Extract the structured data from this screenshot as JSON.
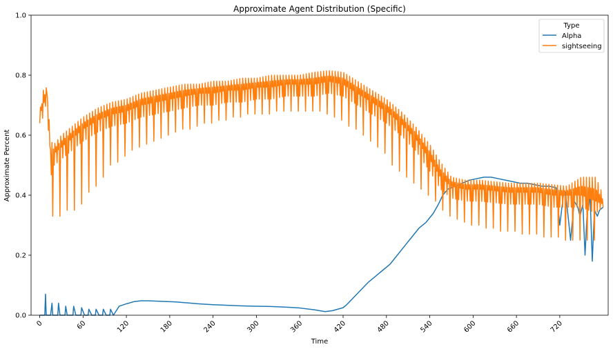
{
  "chart_data": {
    "type": "line",
    "title": "Approximate Agent Distribution (Specific)",
    "xlabel": "Time",
    "ylabel": "Approximate Percent",
    "xlim": [
      -12,
      787
    ],
    "ylim": [
      0,
      1
    ],
    "xticks": [
      0,
      60,
      120,
      180,
      240,
      300,
      360,
      420,
      480,
      540,
      600,
      660,
      720
    ],
    "xtick_rotation": 45,
    "yticks": [
      0.0,
      0.2,
      0.4,
      0.6,
      0.8,
      1.0
    ],
    "ytick_labels": [
      "0.0",
      "0.2",
      "0.4",
      "0.6",
      "0.8",
      "1.0"
    ],
    "grid": false,
    "legend": {
      "title": "Type",
      "placement": "top-right"
    },
    "series": [
      {
        "name": "Alpha",
        "color": "#1f77b4",
        "x": [
          0,
          5,
          7,
          8,
          9,
          12,
          15,
          17,
          18,
          22,
          25,
          26,
          28,
          33,
          35,
          36,
          38,
          44,
          46,
          47,
          50,
          55,
          57,
          58,
          62,
          65,
          67,
          68,
          72,
          75,
          77,
          78,
          82,
          85,
          87,
          88,
          92,
          95,
          97,
          98,
          102,
          110,
          120,
          130,
          140,
          150,
          160,
          170,
          180,
          190,
          200,
          210,
          220,
          240,
          260,
          280,
          300,
          320,
          340,
          360,
          380,
          395,
          405,
          420,
          425,
          435,
          445,
          455,
          465,
          475,
          485,
          495,
          505,
          515,
          525,
          535,
          545,
          552,
          558,
          565,
          575,
          585,
          595,
          605,
          615,
          625,
          635,
          645,
          655,
          665,
          675,
          685,
          695,
          705,
          715,
          720,
          725,
          728,
          735,
          740,
          745,
          748,
          750,
          752,
          755,
          758,
          760,
          762,
          765,
          768,
          772,
          775,
          780
        ],
        "y": [
          0,
          0,
          0,
          0.07,
          0.0,
          0,
          0,
          0.04,
          0.0,
          0,
          0,
          0.04,
          0.0,
          0,
          0,
          0.03,
          0.0,
          0,
          0,
          0.03,
          0.0,
          0,
          0,
          0.025,
          0.0,
          0,
          0,
          0.02,
          0.0,
          0,
          0,
          0.02,
          0.0,
          0,
          0,
          0.02,
          0.0,
          0,
          0,
          0.02,
          0.0,
          0.03,
          0.038,
          0.045,
          0.048,
          0.048,
          0.047,
          0.046,
          0.045,
          0.044,
          0.042,
          0.04,
          0.038,
          0.035,
          0.033,
          0.031,
          0.03,
          0.029,
          0.027,
          0.024,
          0.018,
          0.012,
          0.015,
          0.025,
          0.035,
          0.06,
          0.085,
          0.11,
          0.13,
          0.15,
          0.17,
          0.2,
          0.23,
          0.26,
          0.29,
          0.31,
          0.34,
          0.37,
          0.4,
          0.42,
          0.43,
          0.44,
          0.45,
          0.455,
          0.46,
          0.46,
          0.455,
          0.45,
          0.445,
          0.44,
          0.44,
          0.435,
          0.43,
          0.43,
          0.425,
          0.3,
          0.4,
          0.41,
          0.25,
          0.38,
          0.36,
          0.33,
          0.35,
          0.37,
          0.2,
          0.35,
          0.36,
          0.4,
          0.18,
          0.35,
          0.33,
          0.35,
          0.36
        ]
      },
      {
        "name": "sightseeing",
        "color": "#ff7f0e",
        "envelope": {
          "x": [
            0,
            5,
            10,
            15,
            20,
            30,
            40,
            50,
            60,
            80,
            100,
            120,
            140,
            160,
            180,
            200,
            220,
            240,
            260,
            280,
            300,
            320,
            340,
            360,
            380,
            400,
            420,
            440,
            460,
            480,
            500,
            520,
            540,
            555,
            570,
            590,
            610,
            630,
            650,
            670,
            690,
            710,
            730,
            750,
            770,
            780
          ],
          "high": [
            0.68,
            0.75,
            0.76,
            0.58,
            0.57,
            0.6,
            0.62,
            0.64,
            0.66,
            0.69,
            0.71,
            0.72,
            0.74,
            0.75,
            0.76,
            0.77,
            0.77,
            0.78,
            0.78,
            0.79,
            0.79,
            0.8,
            0.8,
            0.8,
            0.81,
            0.815,
            0.81,
            0.78,
            0.75,
            0.72,
            0.68,
            0.63,
            0.57,
            0.51,
            0.46,
            0.45,
            0.45,
            0.445,
            0.44,
            0.44,
            0.44,
            0.435,
            0.43,
            0.46,
            0.46,
            0.4
          ],
          "mid": [
            0.67,
            0.7,
            0.74,
            0.52,
            0.54,
            0.56,
            0.58,
            0.6,
            0.62,
            0.65,
            0.67,
            0.68,
            0.7,
            0.71,
            0.72,
            0.73,
            0.74,
            0.74,
            0.75,
            0.75,
            0.76,
            0.76,
            0.77,
            0.77,
            0.77,
            0.78,
            0.77,
            0.74,
            0.71,
            0.68,
            0.64,
            0.59,
            0.52,
            0.46,
            0.43,
            0.42,
            0.42,
            0.415,
            0.41,
            0.41,
            0.41,
            0.4,
            0.4,
            0.4,
            0.38,
            0.37
          ],
          "low": [
            0.64,
            0.66,
            0.72,
            0.46,
            0.5,
            0.52,
            0.54,
            0.56,
            0.58,
            0.61,
            0.63,
            0.64,
            0.66,
            0.67,
            0.68,
            0.69,
            0.7,
            0.7,
            0.71,
            0.71,
            0.72,
            0.72,
            0.73,
            0.73,
            0.73,
            0.74,
            0.73,
            0.7,
            0.67,
            0.64,
            0.6,
            0.55,
            0.48,
            0.42,
            0.39,
            0.38,
            0.38,
            0.375,
            0.37,
            0.37,
            0.37,
            0.36,
            0.36,
            0.36,
            0.34,
            0.36
          ]
        },
        "dips": [
          {
            "x": 18,
            "y": 0.33
          },
          {
            "x": 28,
            "y": 0.33
          },
          {
            "x": 38,
            "y": 0.35
          },
          {
            "x": 48,
            "y": 0.35
          },
          {
            "x": 58,
            "y": 0.37
          },
          {
            "x": 68,
            "y": 0.41
          },
          {
            "x": 78,
            "y": 0.43
          },
          {
            "x": 88,
            "y": 0.46
          },
          {
            "x": 98,
            "y": 0.5
          },
          {
            "x": 108,
            "y": 0.51
          },
          {
            "x": 118,
            "y": 0.53
          },
          {
            "x": 128,
            "y": 0.55
          },
          {
            "x": 138,
            "y": 0.56
          },
          {
            "x": 148,
            "y": 0.57
          },
          {
            "x": 158,
            "y": 0.58
          },
          {
            "x": 168,
            "y": 0.59
          },
          {
            "x": 178,
            "y": 0.6
          },
          {
            "x": 188,
            "y": 0.61
          },
          {
            "x": 198,
            "y": 0.62
          },
          {
            "x": 208,
            "y": 0.62
          },
          {
            "x": 218,
            "y": 0.63
          },
          {
            "x": 228,
            "y": 0.64
          },
          {
            "x": 238,
            "y": 0.64
          },
          {
            "x": 248,
            "y": 0.65
          },
          {
            "x": 258,
            "y": 0.65
          },
          {
            "x": 268,
            "y": 0.66
          },
          {
            "x": 278,
            "y": 0.66
          },
          {
            "x": 288,
            "y": 0.67
          },
          {
            "x": 298,
            "y": 0.67
          },
          {
            "x": 308,
            "y": 0.67
          },
          {
            "x": 318,
            "y": 0.67
          },
          {
            "x": 328,
            "y": 0.68
          },
          {
            "x": 338,
            "y": 0.68
          },
          {
            "x": 348,
            "y": 0.68
          },
          {
            "x": 358,
            "y": 0.68
          },
          {
            "x": 368,
            "y": 0.68
          },
          {
            "x": 378,
            "y": 0.68
          },
          {
            "x": 388,
            "y": 0.68
          },
          {
            "x": 398,
            "y": 0.67
          },
          {
            "x": 408,
            "y": 0.66
          },
          {
            "x": 418,
            "y": 0.65
          },
          {
            "x": 428,
            "y": 0.63
          },
          {
            "x": 438,
            "y": 0.62
          },
          {
            "x": 448,
            "y": 0.6
          },
          {
            "x": 458,
            "y": 0.58
          },
          {
            "x": 468,
            "y": 0.56
          },
          {
            "x": 478,
            "y": 0.54
          },
          {
            "x": 488,
            "y": 0.5
          },
          {
            "x": 498,
            "y": 0.48
          },
          {
            "x": 508,
            "y": 0.46
          },
          {
            "x": 518,
            "y": 0.44
          },
          {
            "x": 528,
            "y": 0.42
          },
          {
            "x": 538,
            "y": 0.4
          },
          {
            "x": 548,
            "y": 0.38
          },
          {
            "x": 558,
            "y": 0.35
          },
          {
            "x": 568,
            "y": 0.33
          },
          {
            "x": 578,
            "y": 0.32
          },
          {
            "x": 588,
            "y": 0.31
          },
          {
            "x": 598,
            "y": 0.3
          },
          {
            "x": 608,
            "y": 0.3
          },
          {
            "x": 618,
            "y": 0.29
          },
          {
            "x": 628,
            "y": 0.29
          },
          {
            "x": 638,
            "y": 0.28
          },
          {
            "x": 648,
            "y": 0.28
          },
          {
            "x": 658,
            "y": 0.28
          },
          {
            "x": 668,
            "y": 0.27
          },
          {
            "x": 678,
            "y": 0.27
          },
          {
            "x": 688,
            "y": 0.27
          },
          {
            "x": 698,
            "y": 0.26
          },
          {
            "x": 708,
            "y": 0.26
          },
          {
            "x": 718,
            "y": 0.26
          },
          {
            "x": 728,
            "y": 0.25
          },
          {
            "x": 738,
            "y": 0.25
          },
          {
            "x": 748,
            "y": 0.25
          },
          {
            "x": 758,
            "y": 0.25
          },
          {
            "x": 768,
            "y": 0.25
          }
        ]
      }
    ]
  }
}
